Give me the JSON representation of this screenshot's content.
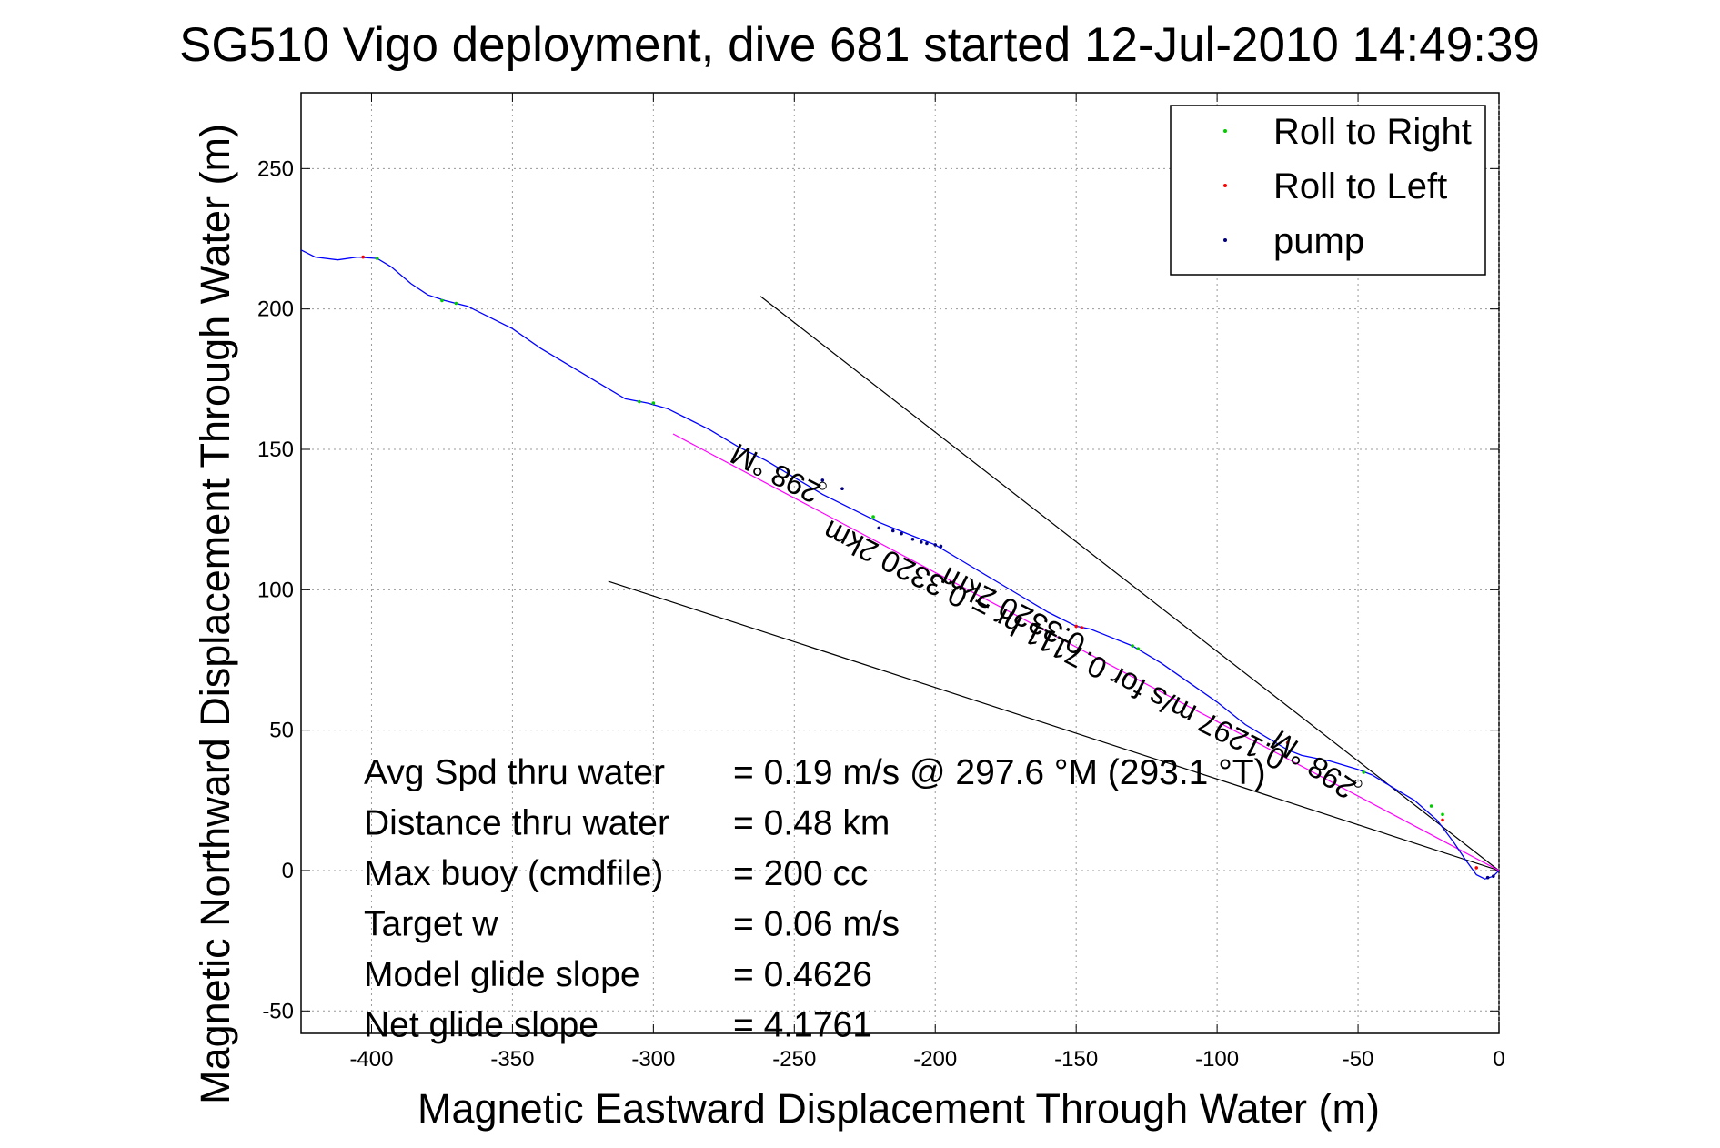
{
  "chart_data": {
    "type": "scatter",
    "title": "SG510 Vigo deployment, dive 681 started 12-Jul-2010 14:49:39",
    "xlabel": "Magnetic Eastward Displacement Through Water (m)",
    "ylabel": "Magnetic Northward Displacement Through Water (m)",
    "xlim": [
      -425,
      0
    ],
    "ylim": [
      -58,
      277
    ],
    "xticks": [
      -400,
      -350,
      -300,
      -250,
      -200,
      -150,
      -100,
      -50,
      0
    ],
    "yticks": [
      250,
      200,
      150,
      100,
      50,
      0,
      -50
    ],
    "grid": true,
    "legend_position": "top-right",
    "legend": [
      {
        "label": "Roll to Right",
        "color": "#00cc00"
      },
      {
        "label": "Roll to Left",
        "color": "#ff0000"
      },
      {
        "label": "pump",
        "color": "#000080"
      }
    ],
    "track": {
      "color": "#0000ff",
      "x": [
        -425,
        -420,
        -412,
        -405,
        -398,
        -393,
        -386,
        -380,
        -374,
        -366,
        -358,
        -350,
        -340,
        -330,
        -320,
        -310,
        -302,
        -295,
        -288,
        -280,
        -270,
        -260,
        -250,
        -240,
        -230,
        -220,
        -210,
        -200,
        -190,
        -180,
        -170,
        -160,
        -150,
        -145,
        -140,
        -130,
        -120,
        -110,
        -100,
        -90,
        -80,
        -75,
        -70,
        -60,
        -50,
        -45,
        -40,
        -30,
        -22,
        -16,
        -12,
        -8,
        -5,
        -2,
        0
      ],
      "y": [
        221,
        218.5,
        217.5,
        218.5,
        218,
        215,
        209,
        205,
        203,
        201,
        197,
        193,
        186,
        180,
        174,
        168,
        166.5,
        164.5,
        161,
        157,
        151,
        146,
        140,
        134,
        129,
        124,
        120,
        116,
        110,
        104,
        98,
        92,
        87,
        86,
        84,
        80,
        74,
        67,
        60,
        52,
        46,
        43,
        41,
        39,
        36,
        34,
        31,
        25,
        18,
        10,
        4,
        -1.5,
        -3,
        -2,
        0
      ]
    },
    "roll_right_points": {
      "x": [
        -398,
        -375,
        -370,
        -305,
        -300,
        -222,
        -130,
        -128,
        -48,
        -24,
        -20
      ],
      "y": [
        218,
        203,
        202,
        167,
        166.5,
        126,
        80,
        79,
        35,
        23,
        20
      ]
    },
    "roll_left_points": {
      "x": [
        -403,
        -150,
        -148,
        -75,
        -20,
        -8
      ],
      "y": [
        218.5,
        87,
        86.5,
        45.5,
        18,
        1
      ]
    },
    "pump_points": {
      "x": [
        -240,
        -233,
        -220,
        -215,
        -212,
        -208,
        -205,
        -203,
        -200,
        -198,
        -4,
        -2
      ],
      "y": [
        139,
        136,
        122,
        121,
        120,
        118,
        117,
        116.5,
        116,
        115.5,
        -2.5,
        -2
      ]
    },
    "lines": [
      {
        "color": "#000000",
        "x": [
          -262,
          0
        ],
        "y": [
          204.5,
          0
        ]
      },
      {
        "color": "#000000",
        "x": [
          -316,
          0
        ],
        "y": [
          103,
          0
        ]
      },
      {
        "color": "#ff00ff",
        "x": [
          -293,
          0
        ],
        "y": [
          155.5,
          0
        ]
      }
    ],
    "markers": [
      {
        "x": -240,
        "y": 137
      },
      {
        "x": -50,
        "y": 31
      }
    ],
    "annotations": [
      {
        "text": "298 °M",
        "x": -240,
        "y": 137,
        "rotation_deg": 207
      },
      {
        "text": "0.3320 2km",
        "x": -146,
        "y": 83,
        "rotation_deg": 207
      },
      {
        "text": "0.1297 m/s for 0.7111 hr = 0.3320 2km",
        "x": -75,
        "y": 42,
        "rotation_deg": 207
      },
      {
        "text": "298 °M",
        "x": -50,
        "y": 31,
        "rotation_deg": 215
      }
    ],
    "stats": [
      {
        "label": "Avg Spd thru water",
        "value": "=  0.19 m/s @ 297.6 °M (293.1 °T)"
      },
      {
        "label": "Distance thru water",
        "value": "=  0.48 km"
      },
      {
        "label": "Max buoy (cmdfile)",
        "value": "= 200 cc"
      },
      {
        "label": "Target w",
        "value": "= 0.06 m/s"
      },
      {
        "label": "Model glide slope",
        "value": "= 0.4626"
      },
      {
        "label": "Net glide slope",
        "value": "= 4.1761"
      }
    ]
  }
}
